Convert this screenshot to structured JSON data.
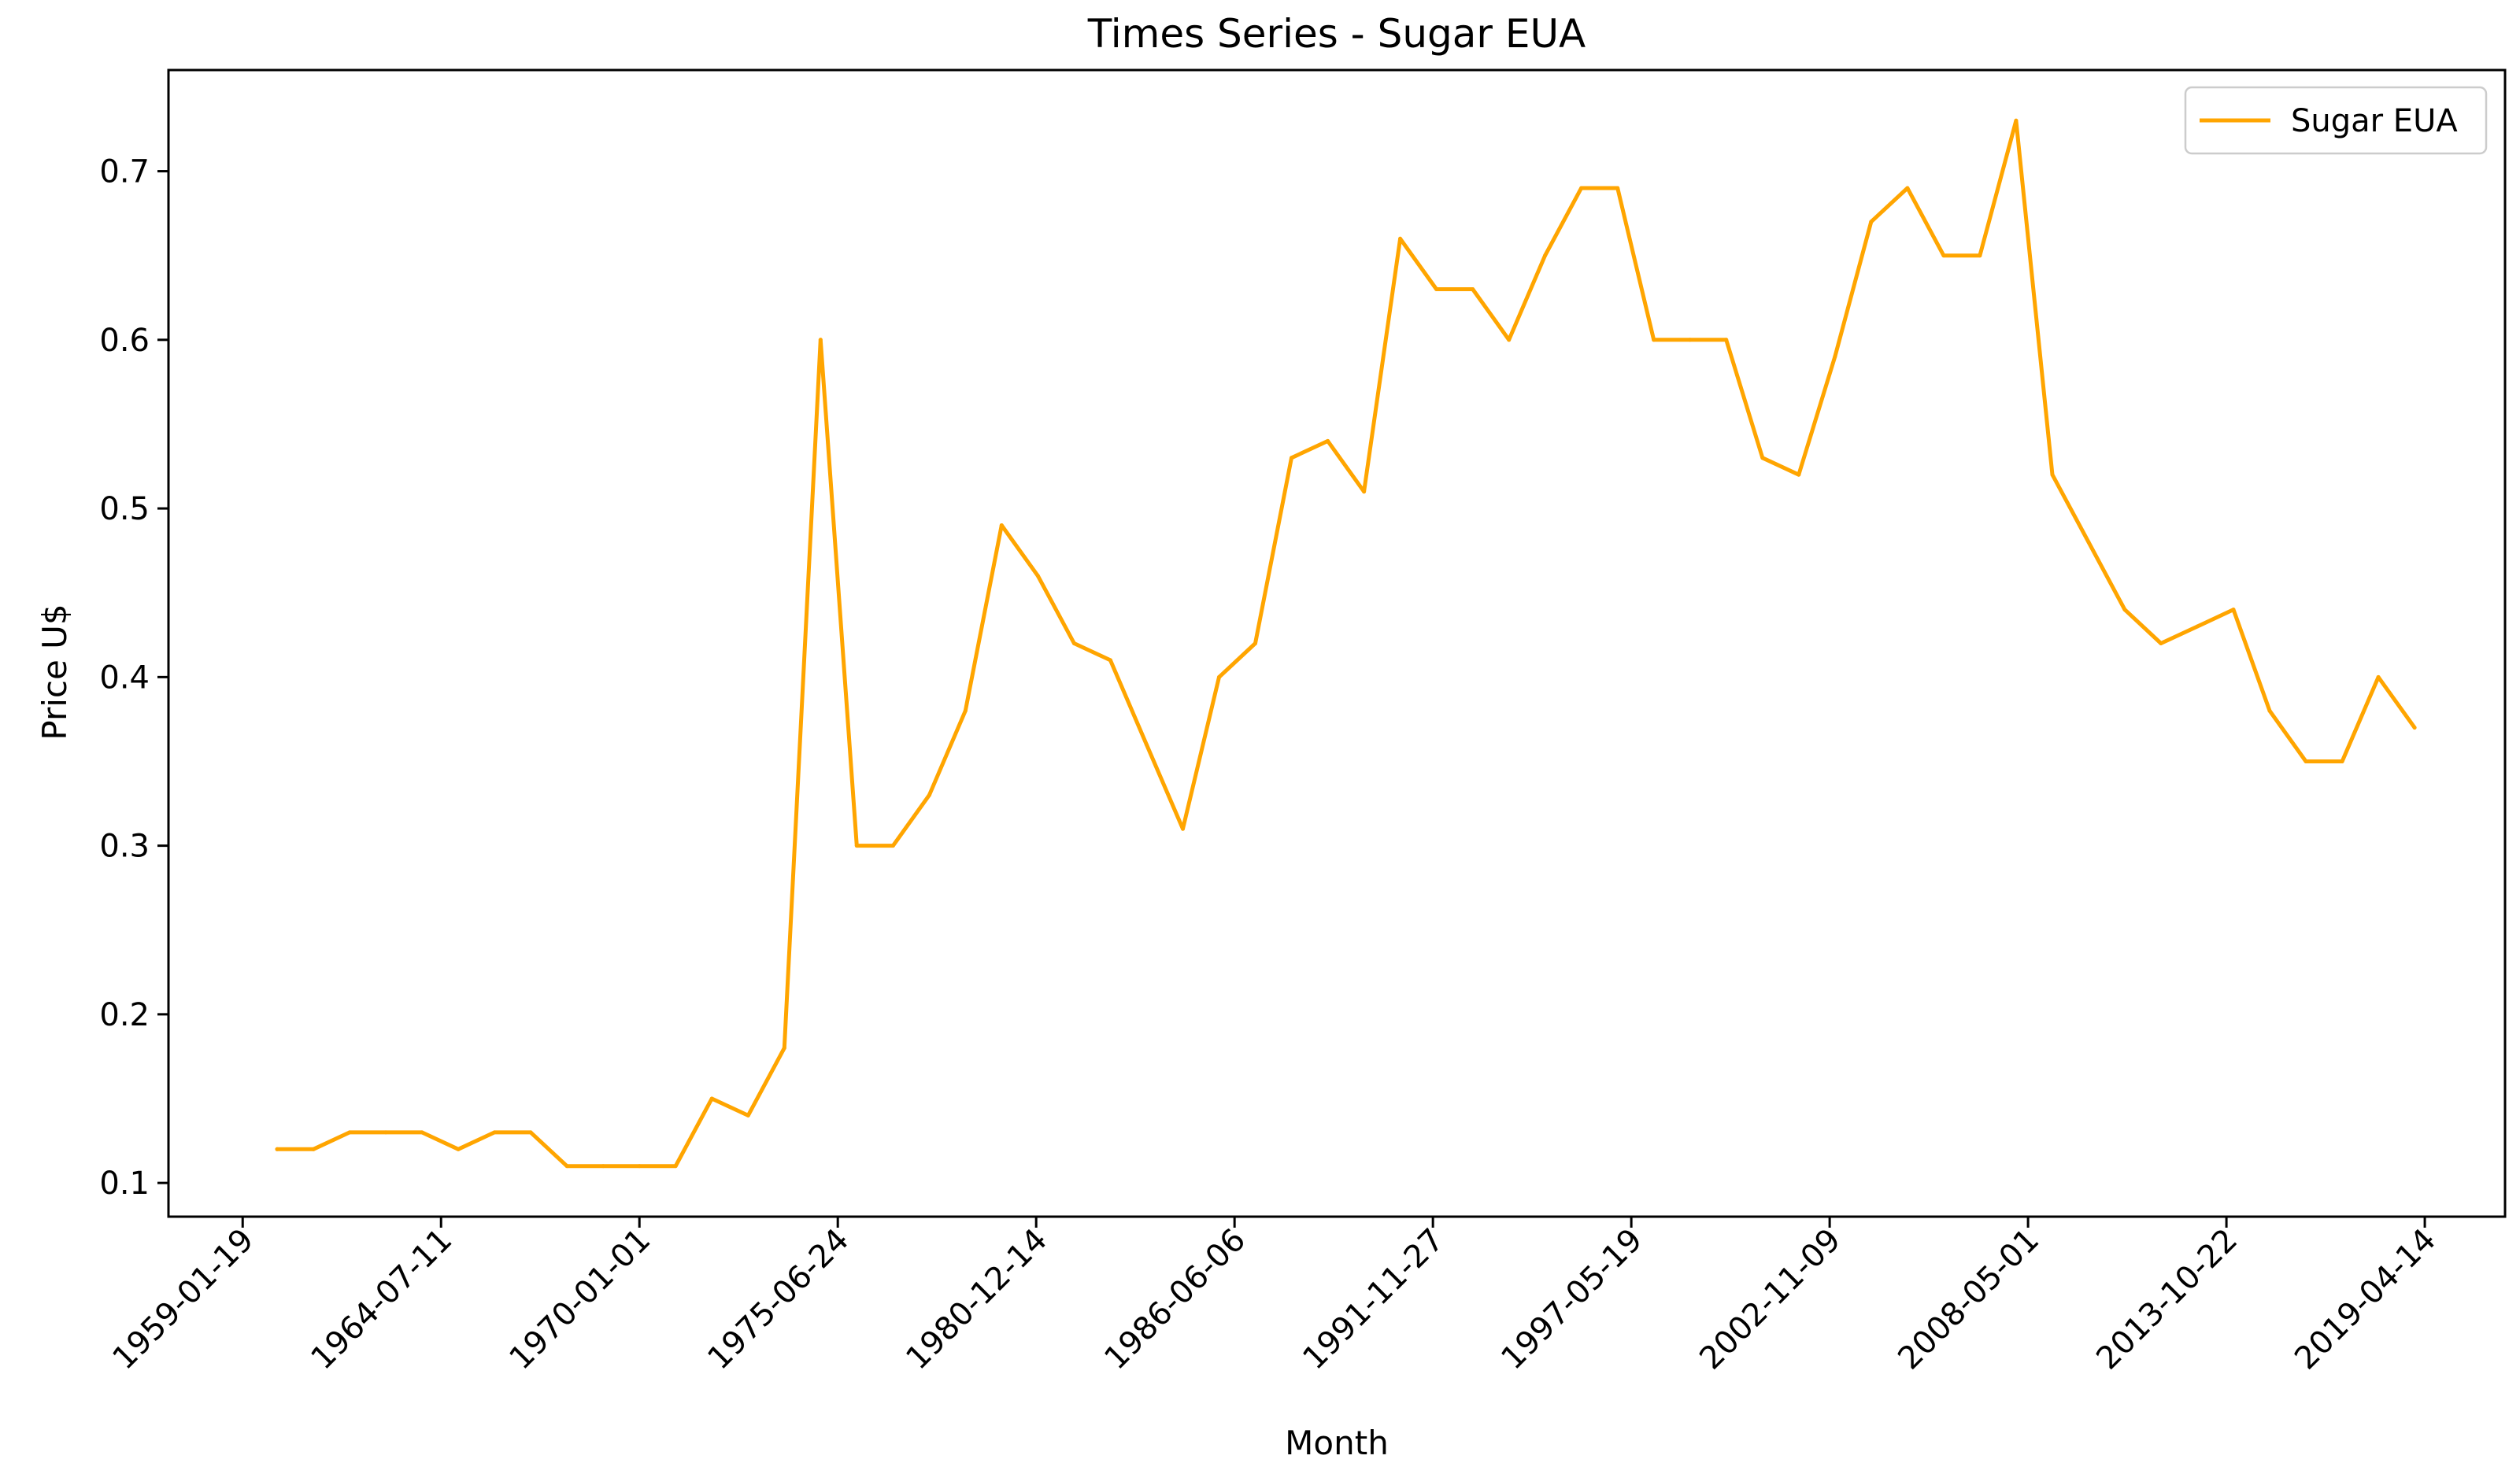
{
  "chart_data": {
    "type": "line",
    "title": "Times Series - Sugar EUA",
    "xlabel": "Month",
    "ylabel": "Price U$",
    "x_tick_labels": [
      "1959-01-19",
      "1964-07-11",
      "1970-01-01",
      "1975-06-24",
      "1980-12-14",
      "1986-06-06",
      "1991-11-27",
      "1997-05-19",
      "2002-11-09",
      "2008-05-01",
      "2013-10-22",
      "2019-04-14"
    ],
    "y_tick_labels": [
      "0.1",
      "0.2",
      "0.3",
      "0.4",
      "0.5",
      "0.6",
      "0.7"
    ],
    "y_ticks": [
      0.1,
      0.2,
      0.3,
      0.4,
      0.5,
      0.6,
      0.7
    ],
    "xlim": [
      "1957-01-01",
      "2021-07-01"
    ],
    "ylim": [
      0.08,
      0.76
    ],
    "grid": false,
    "legend": {
      "placement": "top-right"
    },
    "series": [
      {
        "name": "Sugar EUA",
        "color": "#FFA500",
        "x": [
          "1960-01-01",
          "1961-01-01",
          "1962-01-01",
          "1963-01-01",
          "1964-01-01",
          "1965-01-01",
          "1966-01-01",
          "1967-01-01",
          "1968-01-01",
          "1969-01-01",
          "1970-01-01",
          "1971-01-01",
          "1972-01-01",
          "1973-01-01",
          "1974-01-01",
          "1975-01-01",
          "1976-01-01",
          "1977-01-01",
          "1978-01-01",
          "1979-01-01",
          "1980-01-01",
          "1981-01-01",
          "1982-01-01",
          "1983-01-01",
          "1984-01-01",
          "1985-01-01",
          "1986-01-01",
          "1987-01-01",
          "1988-01-01",
          "1989-01-01",
          "1990-01-01",
          "1991-01-01",
          "1992-01-01",
          "1993-01-01",
          "1994-01-01",
          "1995-01-01",
          "1996-01-01",
          "1997-01-01",
          "1998-01-01",
          "1999-01-01",
          "2000-01-01",
          "2001-01-01",
          "2002-01-01",
          "2003-01-01",
          "2004-01-01",
          "2005-01-01",
          "2006-01-01",
          "2007-01-01",
          "2008-01-01",
          "2009-01-01",
          "2010-01-01",
          "2011-01-01",
          "2012-01-01",
          "2013-01-01",
          "2014-01-01",
          "2015-01-01",
          "2016-01-01",
          "2017-01-01",
          "2018-01-01",
          "2019-01-01"
        ],
        "values": [
          0.12,
          0.12,
          0.13,
          0.13,
          0.13,
          0.12,
          0.13,
          0.13,
          0.11,
          0.11,
          0.11,
          0.11,
          0.15,
          0.14,
          0.18,
          0.6,
          0.3,
          0.3,
          0.33,
          0.38,
          0.49,
          0.46,
          0.42,
          0.41,
          0.36,
          0.31,
          0.4,
          0.42,
          0.53,
          0.54,
          0.51,
          0.66,
          0.63,
          0.63,
          0.6,
          0.65,
          0.69,
          0.69,
          0.6,
          0.6,
          0.6,
          0.53,
          0.52,
          0.59,
          0.67,
          0.69,
          0.65,
          0.65,
          0.73,
          0.52,
          0.48,
          0.44,
          0.42,
          0.43,
          0.44,
          0.38,
          0.35,
          0.35,
          0.4,
          0.37
        ]
      }
    ]
  }
}
